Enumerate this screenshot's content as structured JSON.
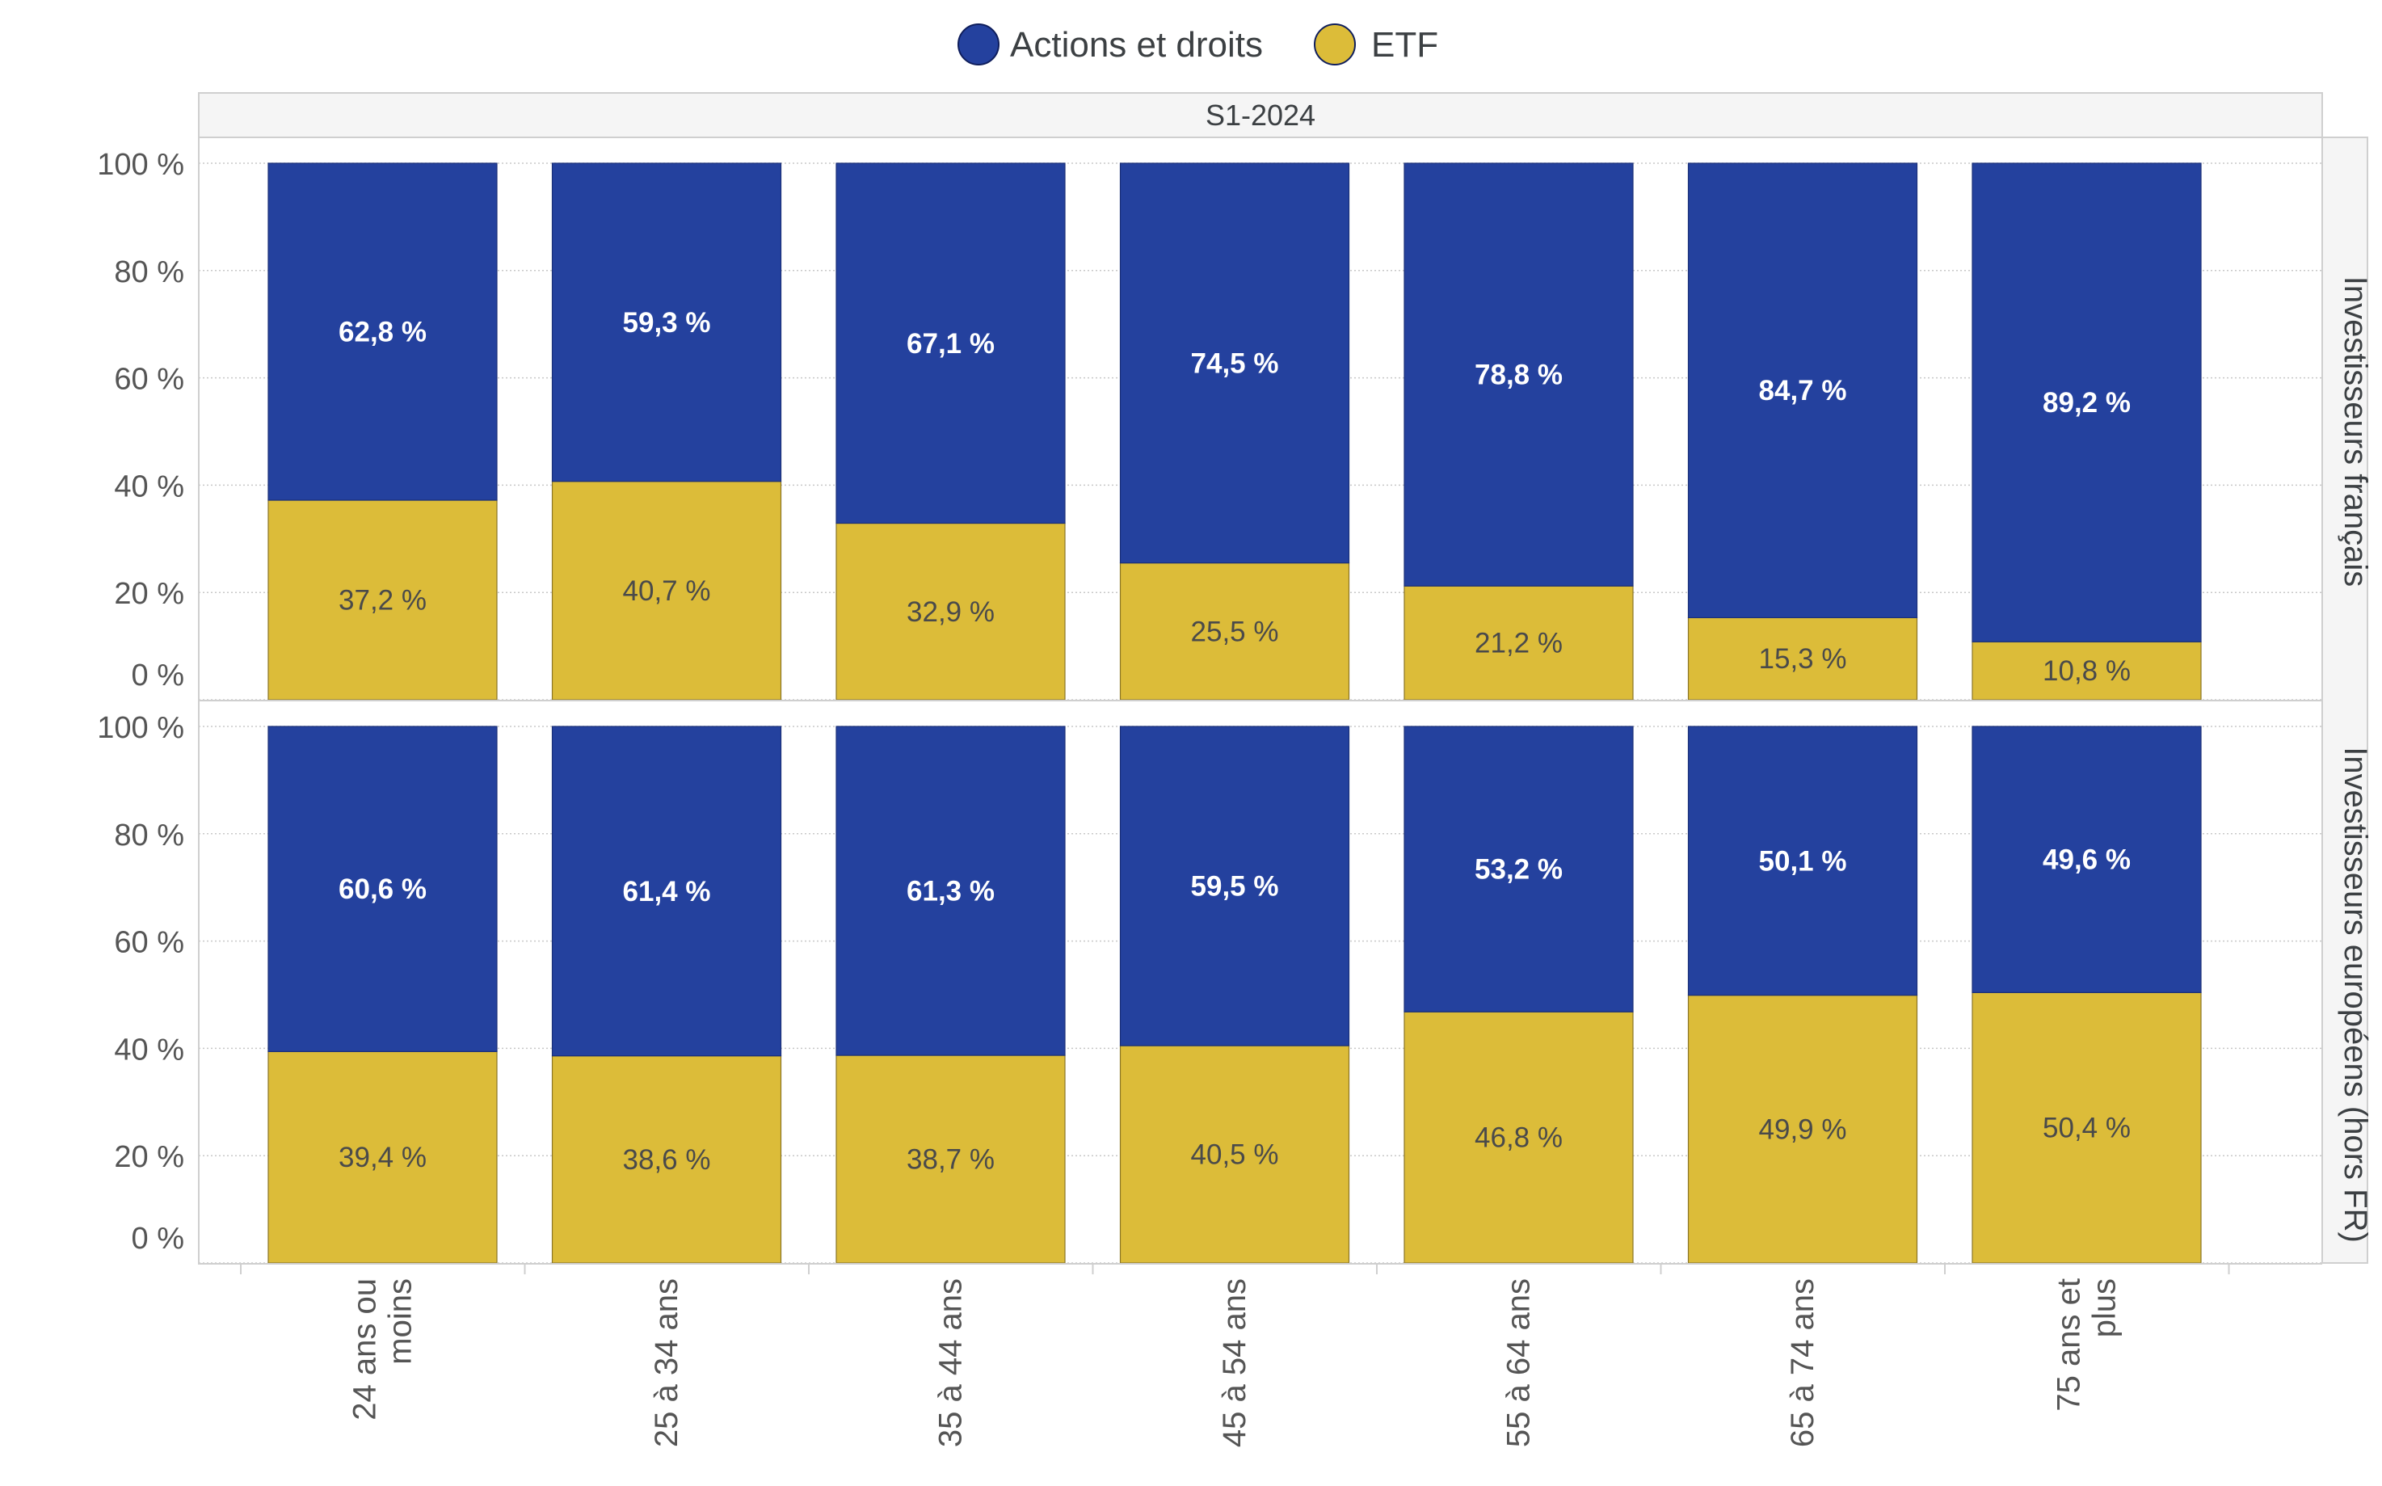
{
  "chart_data": {
    "type": "bar",
    "stacked": true,
    "categories": [
      "24 ans ou moins",
      "25 à 34 ans",
      "35 à 44 ans",
      "45 à 54 ans",
      "55 à 64 ans",
      "65 à 74 ans",
      "75 ans et plus"
    ],
    "category_lines": [
      [
        "24 ans ou",
        "moins"
      ],
      [
        "25 à 34 ans"
      ],
      [
        "35 à 44 ans"
      ],
      [
        "45 à 54 ans"
      ],
      [
        "55 à 64 ans"
      ],
      [
        "65 à 74 ans"
      ],
      [
        "75 ans et",
        "plus"
      ]
    ],
    "column_facet": "S1-2024",
    "legend": {
      "position": "top",
      "entries": [
        {
          "name": "Actions et droits",
          "color": "#24419e"
        },
        {
          "name": "ETF",
          "color": "#dcbc39"
        }
      ]
    },
    "yticks": [
      "0 %",
      "20 %",
      "40 %",
      "60 %",
      "80 %",
      "100 %"
    ],
    "ylim": [
      0,
      100
    ],
    "grid": true,
    "panels": [
      {
        "facet": "Investisseurs français",
        "series": [
          {
            "name": "ETF",
            "values": [
              37.2,
              40.7,
              32.9,
              25.5,
              21.2,
              15.3,
              10.8
            ],
            "labels": [
              "37,2 %",
              "40,7 %",
              "32,9 %",
              "25,5 %",
              "21,2 %",
              "15,3 %",
              "10,8 %"
            ]
          },
          {
            "name": "Actions et droits",
            "values": [
              62.8,
              59.3,
              67.1,
              74.5,
              78.8,
              84.7,
              89.2
            ],
            "labels": [
              "62,8 %",
              "59,3 %",
              "67,1 %",
              "74,5 %",
              "78,8 %",
              "84,7 %",
              "89,2 %"
            ]
          }
        ]
      },
      {
        "facet": "Investisseurs européens (hors FR)",
        "series": [
          {
            "name": "ETF",
            "values": [
              39.4,
              38.6,
              38.7,
              40.5,
              46.8,
              49.9,
              50.4
            ],
            "labels": [
              "39,4 %",
              "38,6 %",
              "38,7 %",
              "40,5 %",
              "46,8 %",
              "49,9 %",
              "50,4 %"
            ]
          },
          {
            "name": "Actions et droits",
            "values": [
              60.6,
              61.4,
              61.3,
              59.5,
              53.2,
              50.1,
              49.6
            ],
            "labels": [
              "60,6 %",
              "61,4 %",
              "61,3 %",
              "59,5 %",
              "53,2 %",
              "50,1 %",
              "49,6 %"
            ]
          }
        ]
      }
    ]
  }
}
